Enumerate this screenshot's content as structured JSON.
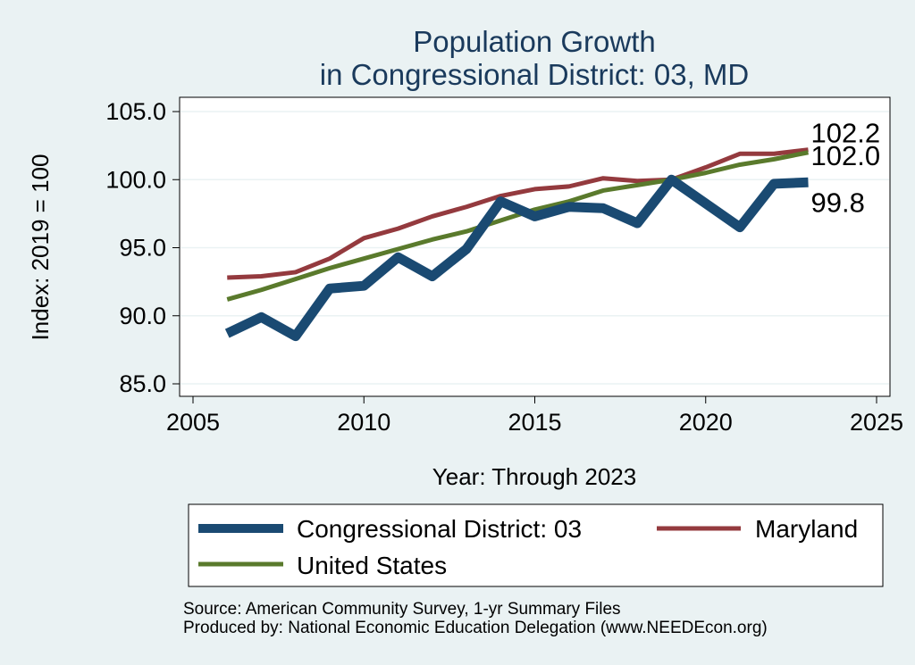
{
  "chart_data": {
    "type": "line",
    "title": [
      "Population Growth",
      "in Congressional District: 03, MD"
    ],
    "xlabel": "Year: Through 2023",
    "ylabel": "Index: 2019 = 100",
    "xlim": [
      2005,
      2025
    ],
    "ylim": [
      85,
      105
    ],
    "xticks": [
      2005,
      2010,
      2015,
      2020,
      2025
    ],
    "xtick_labels": [
      "2005",
      "2010",
      "2015",
      "2020",
      "2025"
    ],
    "yticks": [
      85,
      90,
      95,
      100,
      105
    ],
    "ytick_labels": [
      "85.0",
      "90.0",
      "95.0",
      "100.0",
      "105.0"
    ],
    "grid": true,
    "legend_position": "bottom",
    "x": [
      2006,
      2007,
      2008,
      2009,
      2010,
      2011,
      2012,
      2013,
      2014,
      2015,
      2016,
      2017,
      2018,
      2019,
      2020,
      2021,
      2022,
      2023
    ],
    "series": [
      {
        "name": "Congressional District: 03",
        "color": "#1a4a72",
        "x": [
          2006,
          2007,
          2008,
          2009,
          2010,
          2011,
          2012,
          2013,
          2014,
          2015,
          2016,
          2017,
          2018,
          2019,
          2021,
          2022,
          2023
        ],
        "values": [
          88.7,
          89.9,
          88.5,
          92.0,
          92.2,
          94.3,
          92.9,
          94.9,
          98.4,
          97.3,
          98.0,
          97.9,
          96.8,
          100.0,
          96.5,
          99.7,
          99.8
        ],
        "end_label": "99.8"
      },
      {
        "name": "Maryland",
        "color": "#943a3e",
        "x": [
          2006,
          2007,
          2008,
          2009,
          2010,
          2011,
          2012,
          2013,
          2014,
          2015,
          2016,
          2017,
          2018,
          2019,
          2020,
          2021,
          2022,
          2023
        ],
        "values": [
          92.8,
          92.9,
          93.2,
          94.2,
          95.7,
          96.4,
          97.3,
          98.0,
          98.8,
          99.3,
          99.5,
          100.1,
          99.9,
          100.0,
          100.9,
          101.9,
          101.9,
          102.2
        ],
        "end_label": "102.2"
      },
      {
        "name": "United States",
        "color": "#5a7a2c",
        "x": [
          2006,
          2007,
          2008,
          2009,
          2010,
          2011,
          2012,
          2013,
          2014,
          2015,
          2016,
          2017,
          2018,
          2019,
          2020,
          2021,
          2022,
          2023
        ],
        "values": [
          91.2,
          91.9,
          92.7,
          93.5,
          94.2,
          94.9,
          95.6,
          96.2,
          97.0,
          97.8,
          98.4,
          99.2,
          99.6,
          100.0,
          100.5,
          101.1,
          101.5,
          102.0
        ],
        "end_label": "102.0"
      }
    ]
  },
  "source_lines": [
    "Source: American Community Survey, 1-yr Summary Files",
    "Produced by: National Economic Education Delegation (www.NEEDEcon.org)"
  ]
}
